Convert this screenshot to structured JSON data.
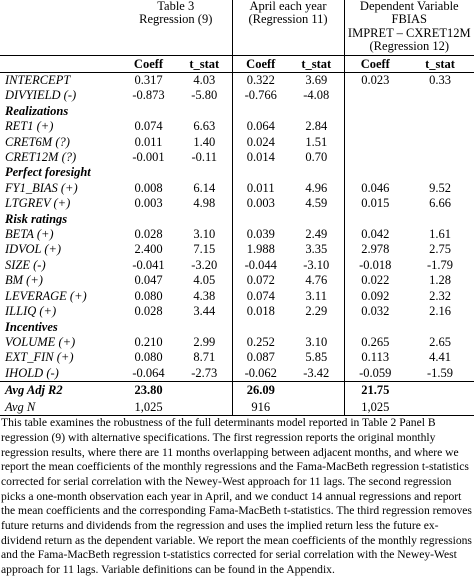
{
  "table": {
    "groups": [
      {
        "lines": [
          "Table 3",
          "Regression (9)"
        ]
      },
      {
        "lines": [
          "April each year",
          "(Regression 11)"
        ]
      },
      {
        "lines": [
          "Dependent Variable",
          "FBIAS",
          "IMPRET – CXRET12M",
          "(Regression 12)"
        ]
      }
    ],
    "columns": [
      "Coeff",
      "t_stat",
      "Coeff",
      "t_stat",
      "Coeff",
      "t_stat"
    ],
    "rows": [
      {
        "label": "INTERCEPT",
        "cells": [
          "0.317",
          "4.03",
          "0.322",
          "3.69",
          "0.023",
          "0.33"
        ]
      },
      {
        "label": "DIVYIELD (-)",
        "cells": [
          "-0.873",
          "-5.80",
          "-0.766",
          "-4.08",
          null,
          null
        ]
      },
      {
        "section": "Realizations"
      },
      {
        "label": "RET1  (+)",
        "cells": [
          "0.074",
          "6.63",
          "0.064",
          "2.84",
          null,
          null
        ]
      },
      {
        "label": "CRET6M (?)",
        "cells": [
          "0.011",
          "1.40",
          "0.024",
          "1.51",
          null,
          null
        ]
      },
      {
        "label": "CRET12M (?)",
        "cells": [
          "-0.001",
          "-0.11",
          "0.014",
          "0.70",
          null,
          null
        ]
      },
      {
        "section": "Perfect foresight"
      },
      {
        "label": "FY1_BIAS (+)",
        "cells": [
          "0.008",
          "6.14",
          "0.011",
          "4.96",
          "0.046",
          "9.52"
        ]
      },
      {
        "label": "LTGREV (+)",
        "cells": [
          "0.003",
          "4.98",
          "0.003",
          "4.59",
          "0.015",
          "6.66"
        ]
      },
      {
        "section": "Risk ratings"
      },
      {
        "label": "BETA  (+)",
        "cells": [
          "0.028",
          "3.10",
          "0.039",
          "2.49",
          "0.042",
          "1.61"
        ]
      },
      {
        "label": "IDVOL (+)",
        "cells": [
          "2.400",
          "7.15",
          "1.988",
          "3.35",
          "2.978",
          "2.75"
        ]
      },
      {
        "label": "SIZE (-)",
        "cells": [
          "-0.041",
          "-3.20",
          "-0.044",
          "-3.10",
          "-0.018",
          "-1.79"
        ]
      },
      {
        "label": "BM (+)",
        "cells": [
          "0.047",
          "4.05",
          "0.072",
          "4.76",
          "0.022",
          "1.28"
        ]
      },
      {
        "label": "LEVERAGE (+)",
        "cells": [
          "0.080",
          "4.38",
          "0.074",
          "3.11",
          "0.092",
          "2.32"
        ]
      },
      {
        "label": "ILLIQ (+)",
        "cells": [
          "0.028",
          "3.44",
          "0.018",
          "2.29",
          "0.032",
          "2.16"
        ]
      },
      {
        "section": "Incentives"
      },
      {
        "label": "VOLUME (+)",
        "cells": [
          "0.210",
          "2.99",
          "0.252",
          "3.10",
          "0.265",
          "2.65"
        ]
      },
      {
        "label": "EXT_FIN (+)",
        "cells": [
          "0.080",
          "8.71",
          "0.087",
          "5.85",
          "0.113",
          "4.41"
        ]
      },
      {
        "label": "IHOLD (-)",
        "cells": [
          "-0.064",
          "-2.73",
          "-0.062",
          "-3.42",
          "-0.059",
          "-1.59"
        ]
      }
    ],
    "summary": [
      {
        "label": "Avg Adj R2",
        "cells": [
          "23.80",
          null,
          "26.09",
          null,
          "21.75",
          null
        ]
      },
      {
        "label": "Avg N",
        "cells": [
          "1,025",
          null,
          "916",
          null,
          "1,025",
          null
        ]
      }
    ]
  },
  "note": "This table examines the robustness of the full determinants model reported in Table 2 Panel B regression (9) with alternative specifications. The first regression reports the original monthly regression results, where there are 11 months overlapping between adjacent months, and where we report the mean coefficients of the monthly regressions and the Fama-MacBeth regression t-statistics corrected for serial correlation with the Newey-West approach for 11 lags. The second regression picks a one-month observation each year in April, and we conduct 14 annual regressions and report the mean coefficients and the corresponding Fama-MacBeth t-statistics. The third regression removes future returns and dividends from the regression and uses the implied return less the future ex-dividend return as the dependent variable. We report the mean coefficients of the monthly regressions and the Fama-MacBeth regression t-statistics corrected for serial correlation with the Newey-West approach for 11 lags. Variable definitions can be found in the Appendix."
}
